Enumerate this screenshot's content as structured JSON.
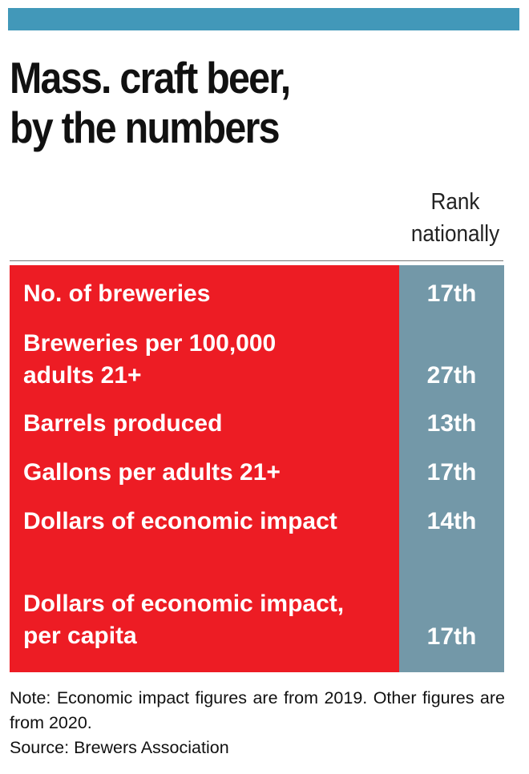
{
  "colors": {
    "top_bar": "#4298b9",
    "label_background": "#ed1c24",
    "rank_background": "#7398a8",
    "text_on_fill": "#ffffff"
  },
  "title_lines": [
    "Mass. craft beer,",
    "by the numbers"
  ],
  "column_header_lines": [
    "Rank",
    "nationally"
  ],
  "chart_data": {
    "type": "table",
    "title": "Mass. craft beer, by the numbers",
    "columns": [
      "",
      "Rank nationally"
    ],
    "rows": [
      {
        "label_lines": [
          "No. of breweries"
        ],
        "rank": "17th"
      },
      {
        "label_lines": [
          "Breweries per 100,000",
          "adults 21+"
        ],
        "rank": "27th"
      },
      {
        "label_lines": [
          "Barrels produced"
        ],
        "rank": "13th"
      },
      {
        "label_lines": [
          "Gallons per adults 21+"
        ],
        "rank": "17th"
      },
      {
        "label_lines": [
          "Dollars of economic impact"
        ],
        "rank": "14th"
      },
      {
        "label_lines": [
          "Dollars of economic impact,",
          "per capita"
        ],
        "rank": "17th"
      }
    ]
  },
  "footnote": {
    "note": "Note: Economic impact figures are from 2019. Other figures are from 2020.",
    "source": "Source: Brewers Association"
  }
}
